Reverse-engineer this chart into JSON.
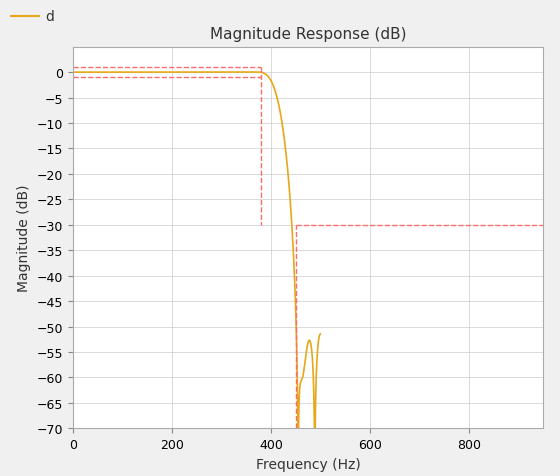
{
  "title": "Magnitude Response (dB)",
  "xlabel": "Frequency (Hz)",
  "ylabel": "Magnitude (dB)",
  "xlim": [
    0,
    950
  ],
  "ylim": [
    -70,
    5
  ],
  "yticks": [
    0,
    -5,
    -10,
    -15,
    -20,
    -25,
    -30,
    -35,
    -40,
    -45,
    -50,
    -55,
    -60,
    -65,
    -70
  ],
  "xticks": [
    0,
    200,
    400,
    600,
    800
  ],
  "filter_color": "#E6A817",
  "mask_color": "#FF6B6B",
  "background_color": "#F0F0F0",
  "axes_bg_color": "#FFFFFF",
  "grid_color": "#CCCCCC",
  "fs": 1000,
  "passband_edge": 380,
  "stopband_edge": 450,
  "passband_ripple_db": 1.0,
  "stopband_atten_db": -30,
  "legend_label": "d",
  "legend_color": "#E6A817",
  "title_fontsize": 11,
  "label_fontsize": 10,
  "tick_fontsize": 9
}
